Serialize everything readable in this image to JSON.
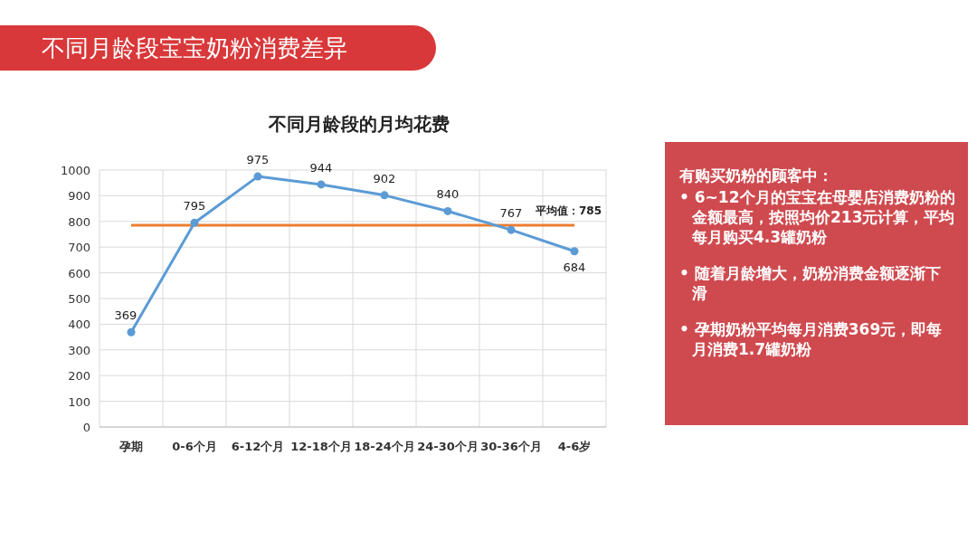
{
  "chart_data": {
    "type": "line",
    "title": "不同月龄段宝宝奶粉消费差异",
    "subtitle": "不同月龄段的月均花费",
    "categories": [
      "孕期",
      "0-6个月",
      "6-12个月",
      "12-18个月",
      "18-24个月",
      "24-30个月",
      "30-36个月",
      "4-6岁"
    ],
    "series": [
      {
        "color": "#5b9bd5",
        "values": [
          369,
          795,
          975,
          944,
          902,
          840,
          767,
          684
        ]
      }
    ],
    "ylim": [
      0,
      1000
    ],
    "yticks": [
      0,
      100,
      200,
      300,
      400,
      500,
      600,
      700,
      800,
      900,
      1000
    ],
    "grid": true,
    "marker": "circle",
    "line_style": "solid",
    "data_labels": true,
    "ref_lines": [
      {
        "axis": "y",
        "value": 785,
        "label": "平均值：785",
        "color": "#ed7d31"
      }
    ],
    "annotations": [
      "有购买奶粉的顾客中：",
      "• 6~12个月的宝宝在母婴店消费奶粉的金额最高，按照均价213元计算，平均每月购买4.3罐奶粉",
      "• 随着月龄增大，奶粉消费金额逐渐下滑",
      "• 孕期奶粉平均每月消费369元，即每月消费1.7罐奶粉"
    ]
  }
}
